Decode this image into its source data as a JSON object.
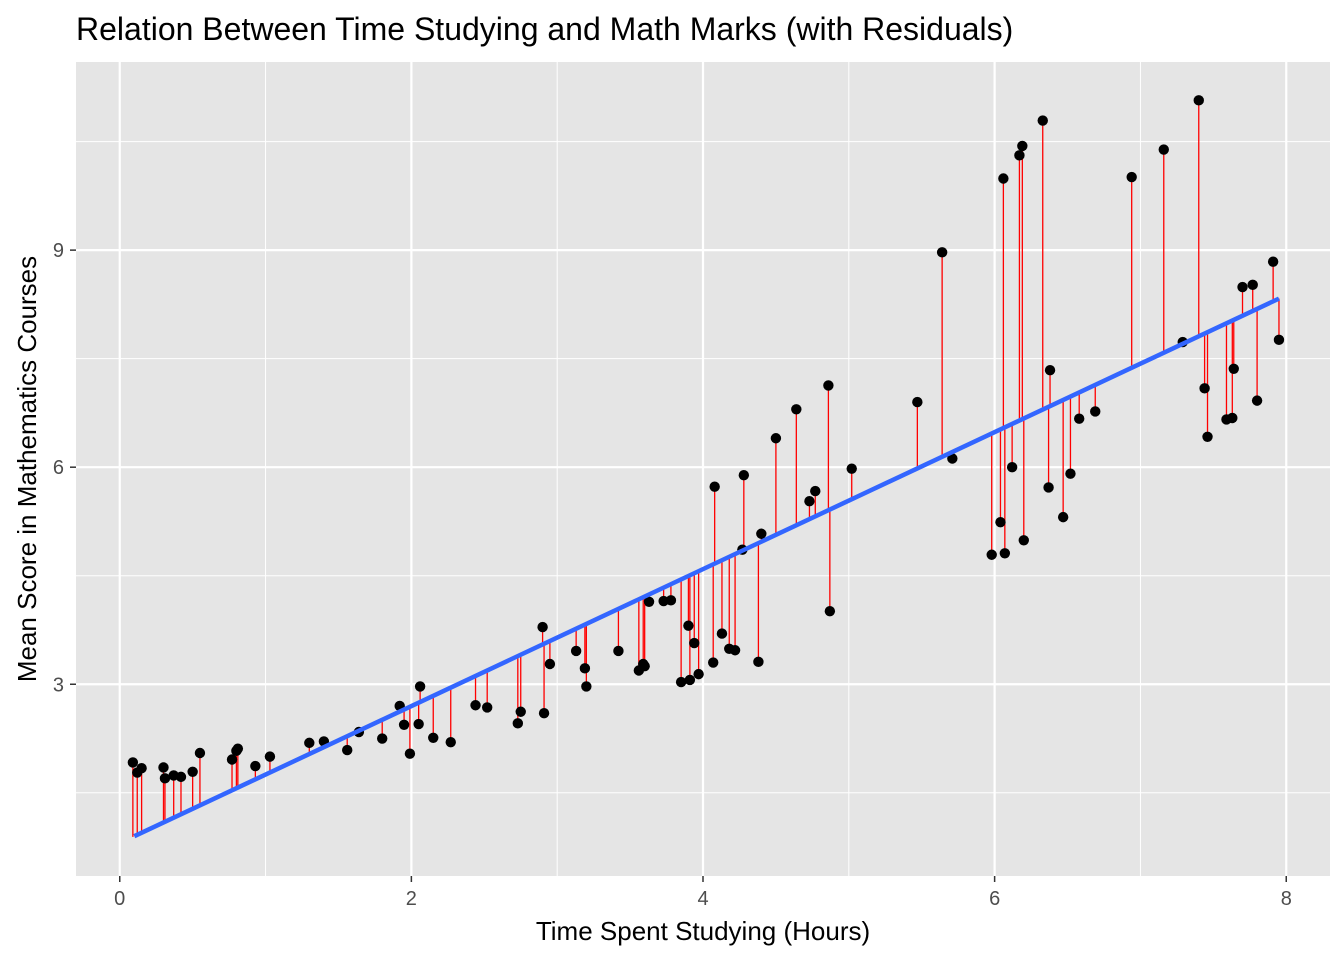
{
  "chart_data": {
    "type": "scatter",
    "title": "Relation Between Time Studying and Math Marks (with Residuals)",
    "xlabel": "Time Spent Studying (Hours)",
    "ylabel": "Mean Score in Mathematics Courses",
    "xlim": [
      -0.3,
      8.3
    ],
    "ylim": [
      0.35,
      11.6
    ],
    "x_ticks": [
      0,
      2,
      4,
      6,
      8
    ],
    "x_tick_labels": [
      "0",
      "2",
      "4",
      "6",
      "8"
    ],
    "y_ticks": [
      3,
      6,
      9
    ],
    "y_tick_labels": [
      "3",
      "6",
      "9"
    ],
    "x_minor_ticks": [
      1,
      3,
      5,
      7
    ],
    "y_minor_ticks": [
      1.5,
      4.5,
      7.5,
      10.5
    ],
    "grid": true,
    "legend": "none",
    "colors": {
      "panel": "#e5e5e5",
      "grid": "#ffffff",
      "points": "#000000",
      "residuals": "#ff0000",
      "fit_line": "#3366ff"
    },
    "regression_line": {
      "x": [
        0.1,
        7.95
      ],
      "y": [
        0.9,
        8.33
      ]
    },
    "points": [
      {
        "x": 0.09,
        "y": 1.92
      },
      {
        "x": 0.12,
        "y": 1.78
      },
      {
        "x": 0.15,
        "y": 1.84
      },
      {
        "x": 0.3,
        "y": 1.85
      },
      {
        "x": 0.31,
        "y": 1.7
      },
      {
        "x": 0.37,
        "y": 1.74
      },
      {
        "x": 0.42,
        "y": 1.72
      },
      {
        "x": 0.5,
        "y": 1.79
      },
      {
        "x": 0.55,
        "y": 2.05
      },
      {
        "x": 0.77,
        "y": 1.96
      },
      {
        "x": 0.8,
        "y": 2.08
      },
      {
        "x": 0.81,
        "y": 2.11
      },
      {
        "x": 0.93,
        "y": 1.87
      },
      {
        "x": 1.03,
        "y": 2.0
      },
      {
        "x": 1.3,
        "y": 2.19
      },
      {
        "x": 1.4,
        "y": 2.21
      },
      {
        "x": 1.56,
        "y": 2.09
      },
      {
        "x": 1.64,
        "y": 2.34
      },
      {
        "x": 1.8,
        "y": 2.25
      },
      {
        "x": 1.92,
        "y": 2.7
      },
      {
        "x": 1.95,
        "y": 2.44
      },
      {
        "x": 1.99,
        "y": 2.04
      },
      {
        "x": 2.05,
        "y": 2.45
      },
      {
        "x": 2.06,
        "y": 2.97
      },
      {
        "x": 2.15,
        "y": 2.26
      },
      {
        "x": 2.27,
        "y": 2.2
      },
      {
        "x": 2.44,
        "y": 2.71
      },
      {
        "x": 2.52,
        "y": 2.68
      },
      {
        "x": 2.73,
        "y": 2.46
      },
      {
        "x": 2.75,
        "y": 2.62
      },
      {
        "x": 2.9,
        "y": 3.79
      },
      {
        "x": 2.91,
        "y": 2.6
      },
      {
        "x": 2.95,
        "y": 3.28
      },
      {
        "x": 3.13,
        "y": 3.46
      },
      {
        "x": 3.19,
        "y": 3.22
      },
      {
        "x": 3.2,
        "y": 2.97
      },
      {
        "x": 3.42,
        "y": 3.46
      },
      {
        "x": 3.56,
        "y": 3.19
      },
      {
        "x": 3.59,
        "y": 3.28
      },
      {
        "x": 3.6,
        "y": 3.25
      },
      {
        "x": 3.63,
        "y": 4.14
      },
      {
        "x": 3.73,
        "y": 4.15
      },
      {
        "x": 3.78,
        "y": 4.16
      },
      {
        "x": 3.85,
        "y": 3.03
      },
      {
        "x": 3.9,
        "y": 3.81
      },
      {
        "x": 3.91,
        "y": 3.06
      },
      {
        "x": 3.94,
        "y": 3.57
      },
      {
        "x": 3.97,
        "y": 3.14
      },
      {
        "x": 4.07,
        "y": 3.3
      },
      {
        "x": 4.08,
        "y": 5.73
      },
      {
        "x": 4.13,
        "y": 3.7
      },
      {
        "x": 4.18,
        "y": 3.49
      },
      {
        "x": 4.22,
        "y": 3.47
      },
      {
        "x": 4.27,
        "y": 4.86
      },
      {
        "x": 4.28,
        "y": 5.89
      },
      {
        "x": 4.38,
        "y": 3.31
      },
      {
        "x": 4.4,
        "y": 5.08
      },
      {
        "x": 4.5,
        "y": 6.4
      },
      {
        "x": 4.64,
        "y": 6.8
      },
      {
        "x": 4.73,
        "y": 5.53
      },
      {
        "x": 4.77,
        "y": 5.67
      },
      {
        "x": 4.86,
        "y": 7.13
      },
      {
        "x": 4.87,
        "y": 4.01
      },
      {
        "x": 5.02,
        "y": 5.98
      },
      {
        "x": 5.47,
        "y": 6.9
      },
      {
        "x": 5.64,
        "y": 8.97
      },
      {
        "x": 5.71,
        "y": 6.12
      },
      {
        "x": 5.98,
        "y": 4.79
      },
      {
        "x": 6.04,
        "y": 5.24
      },
      {
        "x": 6.06,
        "y": 9.99
      },
      {
        "x": 6.07,
        "y": 4.81
      },
      {
        "x": 6.12,
        "y": 6.0
      },
      {
        "x": 6.17,
        "y": 10.31
      },
      {
        "x": 6.19,
        "y": 10.44
      },
      {
        "x": 6.2,
        "y": 4.99
      },
      {
        "x": 6.33,
        "y": 10.79
      },
      {
        "x": 6.37,
        "y": 5.72
      },
      {
        "x": 6.38,
        "y": 7.34
      },
      {
        "x": 6.47,
        "y": 5.31
      },
      {
        "x": 6.52,
        "y": 5.91
      },
      {
        "x": 6.58,
        "y": 6.67
      },
      {
        "x": 6.69,
        "y": 6.77
      },
      {
        "x": 6.94,
        "y": 10.01
      },
      {
        "x": 7.16,
        "y": 10.39
      },
      {
        "x": 7.29,
        "y": 7.73
      },
      {
        "x": 7.4,
        "y": 11.07
      },
      {
        "x": 7.44,
        "y": 7.09
      },
      {
        "x": 7.46,
        "y": 6.42
      },
      {
        "x": 7.59,
        "y": 6.66
      },
      {
        "x": 7.63,
        "y": 6.68
      },
      {
        "x": 7.64,
        "y": 7.36
      },
      {
        "x": 7.7,
        "y": 8.49
      },
      {
        "x": 7.77,
        "y": 8.52
      },
      {
        "x": 7.8,
        "y": 6.92
      },
      {
        "x": 7.91,
        "y": 8.84
      },
      {
        "x": 7.95,
        "y": 7.76
      }
    ]
  }
}
